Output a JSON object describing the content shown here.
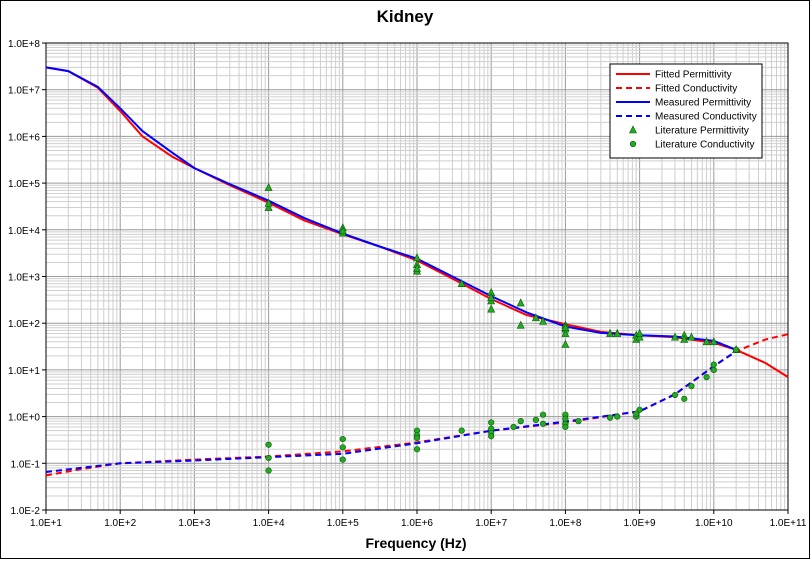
{
  "chart_data": {
    "type": "line",
    "title": "Kidney",
    "xlabel": "Frequency (Hz)",
    "ylabel": "",
    "x_scale": "log",
    "y_scale": "log",
    "xlim": [
      10,
      100000000000
    ],
    "ylim": [
      0.01,
      100000000
    ],
    "grid": true,
    "legend_position": "top-right",
    "x_tick_labels": [
      "1.0E+1",
      "1.0E+2",
      "1.0E+3",
      "1.0E+4",
      "1.0E+5",
      "1.0E+6",
      "1.0E+7",
      "1.0E+8",
      "1.0E+9",
      "1.0E+10",
      "1.0E+11"
    ],
    "y_tick_labels": [
      "1.0E-2",
      "1.0E-1",
      "1.0E+0",
      "1.0E+1",
      "1.0E+2",
      "1.0E+3",
      "1.0E+4",
      "1.0E+5",
      "1.0E+6",
      "1.0E+7",
      "1.0E+8"
    ],
    "series": [
      {
        "name": "Fitted Permittivity",
        "style": "solid",
        "color": "#ff0000",
        "x": [
          10,
          20,
          50,
          100,
          200,
          500,
          1000,
          3000,
          10000,
          30000,
          100000,
          300000,
          1000000,
          3000000,
          10000000,
          30000000,
          100000000,
          300000000,
          1000000000,
          3000000000,
          10000000000,
          20000000000,
          50000000000,
          100000000000
        ],
        "y": [
          30000000,
          25000000,
          11000000,
          3500000,
          1000000,
          370000,
          210000,
          90000,
          38000,
          16000,
          8000,
          4500,
          2200,
          900,
          330,
          150,
          95,
          65,
          55,
          50,
          38,
          27,
          14,
          7
        ]
      },
      {
        "name": "Fitted Conductivity",
        "style": "dashed",
        "color": "#ff0000",
        "x": [
          10,
          30,
          100,
          1000,
          10000,
          100000,
          1000000,
          10000000,
          100000000,
          1000000000,
          3000000000,
          10000000000,
          20000000000,
          50000000000,
          100000000000
        ],
        "y": [
          0.055,
          0.075,
          0.1,
          0.12,
          0.14,
          0.18,
          0.28,
          0.5,
          0.75,
          1.3,
          3,
          12,
          25,
          45,
          58
        ]
      },
      {
        "name": "Measured Permittivity",
        "style": "solid",
        "color": "#0000ff",
        "x": [
          10,
          20,
          50,
          100,
          200,
          500,
          1000,
          3000,
          10000,
          30000,
          100000,
          300000,
          1000000,
          3000000,
          10000000,
          30000000,
          100000000,
          300000000,
          1000000000,
          3000000000,
          10000000000,
          20000000000
        ],
        "y": [
          30000000,
          25000000,
          11500000,
          4000000,
          1300000,
          450000,
          210000,
          95000,
          42000,
          18000,
          8300,
          4500,
          2400,
          1000,
          380,
          170,
          85,
          62,
          55,
          52,
          42,
          27
        ]
      },
      {
        "name": "Measured Conductivity",
        "style": "dashed",
        "color": "#0000ff",
        "x": [
          10,
          30,
          100,
          1000,
          10000,
          100000,
          1000000,
          10000000,
          100000000,
          1000000000,
          3000000000,
          10000000000,
          20000000000
        ],
        "y": [
          0.065,
          0.08,
          0.1,
          0.115,
          0.135,
          0.16,
          0.27,
          0.5,
          0.78,
          1.3,
          3,
          12,
          25
        ]
      },
      {
        "name": "Literature Permittivity",
        "style": "triangle",
        "color": "#22aa22",
        "x": [
          10000,
          10000,
          10000,
          100000,
          100000,
          100000,
          1000000,
          1000000,
          1000000,
          1000000,
          4000000,
          10000000,
          10000000,
          10000000,
          10000000,
          25000000,
          25000000,
          40000000,
          50000000,
          100000000,
          100000000,
          100000000,
          100000000,
          100000000,
          400000000,
          500000000,
          900000000,
          900000000,
          1000000000,
          1000000000,
          3000000000,
          4000000000,
          4000000000,
          5000000000,
          8000000000,
          10000000000,
          20000000000
        ],
        "y": [
          80000,
          30000,
          37000,
          11000,
          8500,
          9500,
          2500,
          1800,
          1300,
          1500,
          700,
          450,
          300,
          200,
          350,
          270,
          90,
          130,
          110,
          90,
          60,
          35,
          75,
          80,
          60,
          60,
          55,
          45,
          50,
          60,
          50,
          55,
          45,
          50,
          40,
          40,
          27
        ]
      },
      {
        "name": "Literature Conductivity",
        "style": "circle",
        "color": "#22aa22",
        "x": [
          10000,
          10000,
          10000,
          100000,
          100000,
          100000,
          1000000,
          1000000,
          1000000,
          1000000,
          4000000,
          10000000,
          10000000,
          10000000,
          10000000,
          20000000,
          25000000,
          40000000,
          50000000,
          50000000,
          100000000,
          100000000,
          100000000,
          100000000,
          150000000,
          400000000,
          500000000,
          900000000,
          900000000,
          1000000000,
          3000000000,
          4000000000,
          5000000000,
          8000000000,
          10000000000,
          10000000000,
          20000000000
        ],
        "y": [
          0.25,
          0.13,
          0.07,
          0.33,
          0.22,
          0.12,
          0.5,
          0.4,
          0.35,
          0.2,
          0.5,
          0.75,
          0.55,
          0.45,
          0.38,
          0.6,
          0.8,
          0.85,
          1.1,
          0.7,
          1.1,
          0.9,
          0.7,
          0.6,
          0.8,
          0.95,
          1,
          1,
          1.15,
          1.4,
          2.9,
          2.4,
          4.5,
          7,
          10,
          13,
          27
        ]
      }
    ]
  }
}
